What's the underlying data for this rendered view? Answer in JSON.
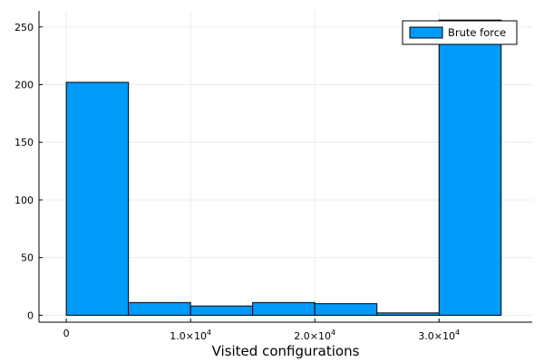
{
  "chart_data": {
    "type": "bar",
    "subtype": "histogram",
    "title": "",
    "xlabel": "Visited configurations",
    "ylabel": "",
    "bins": [
      {
        "x0": 0,
        "x1": 5000,
        "count": 202
      },
      {
        "x0": 5000,
        "x1": 10000,
        "count": 11
      },
      {
        "x0": 10000,
        "x1": 15000,
        "count": 8
      },
      {
        "x0": 15000,
        "x1": 20000,
        "count": 11
      },
      {
        "x0": 20000,
        "x1": 25000,
        "count": 10
      },
      {
        "x0": 25000,
        "x1": 30000,
        "count": 2
      },
      {
        "x0": 30000,
        "x1": 35000,
        "count": 256
      }
    ],
    "series": [
      {
        "name": "Brute force",
        "color": "#009af9"
      }
    ],
    "xlim": [
      -2200,
      37500
    ],
    "ylim": [
      -6,
      264
    ],
    "x_ticks": [
      {
        "value": 0,
        "mantissa": "0",
        "exponent": ""
      },
      {
        "value": 10000,
        "mantissa": "1.0×10",
        "exponent": "4"
      },
      {
        "value": 20000,
        "mantissa": "2.0×10",
        "exponent": "4"
      },
      {
        "value": 30000,
        "mantissa": "3.0×10",
        "exponent": "4"
      }
    ],
    "y_ticks": [
      {
        "value": 0,
        "label": "0"
      },
      {
        "value": 50,
        "label": "50"
      },
      {
        "value": 100,
        "label": "100"
      },
      {
        "value": 150,
        "label": "150"
      },
      {
        "value": 200,
        "label": "200"
      },
      {
        "value": 250,
        "label": "250"
      }
    ],
    "grid": true,
    "legend_position": "top-right",
    "colors": {
      "bar_fill": "#009af9",
      "bar_stroke": "#000000",
      "grid": "#ebebeb",
      "axis": "#000000"
    }
  }
}
